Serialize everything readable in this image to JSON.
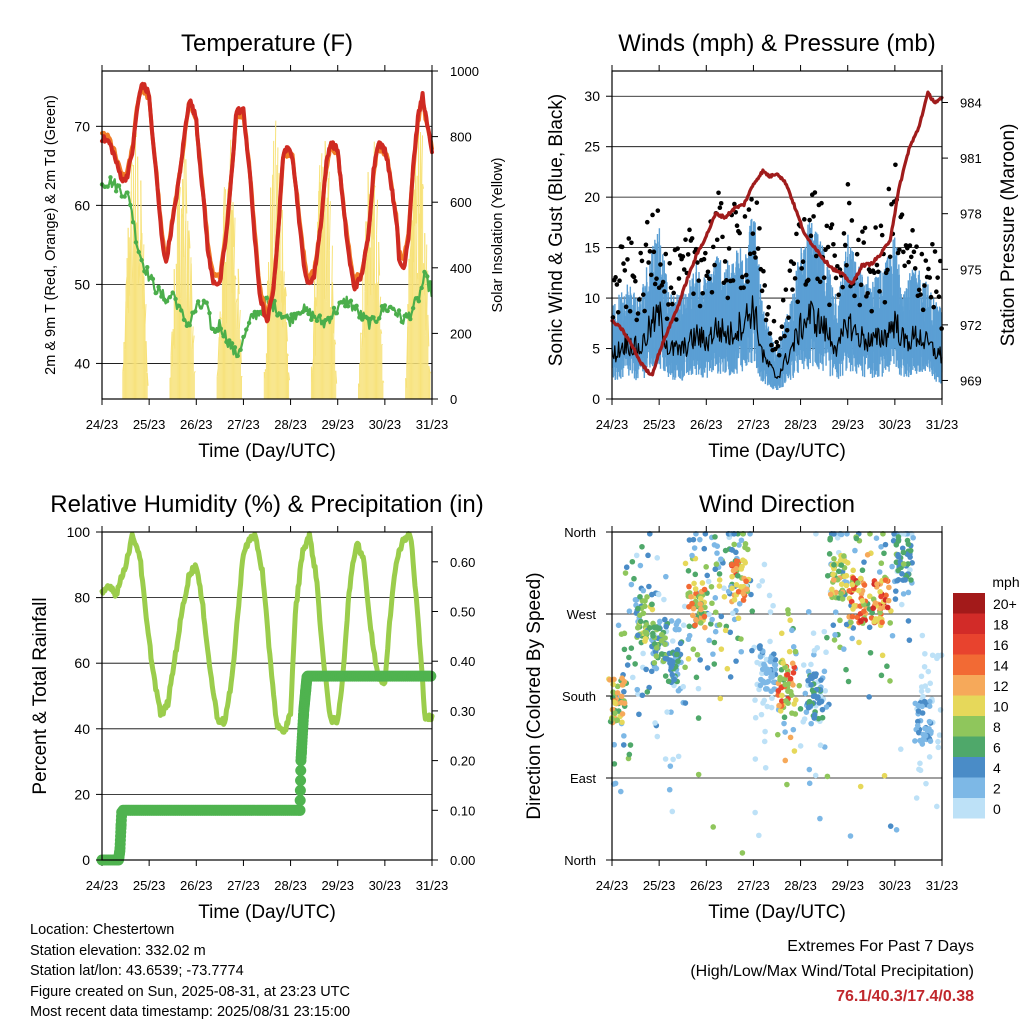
{
  "colors": {
    "temp2m": "#cf2a22",
    "temp9m": "#f07b26",
    "dewpoint": "#4bae4b",
    "solar": "#f7e27a",
    "gust": "#000000",
    "wind": "#5b9fd4",
    "pressure": "#a01c1c",
    "rh": "#9bcd4c",
    "precip": "#4fb34f",
    "extremes_text": "#c0282d"
  },
  "chart_data": [
    {
      "id": "temperature",
      "type": "line",
      "title": "Temperature (F)",
      "xlabel": "Time (Day/UTC)",
      "ylabel": "2m & 9m T (Red, Orange) & 2m Td (Green)",
      "y2label": "Solar Insolation (Yellow)",
      "x_ticks": [
        "24/23",
        "25/23",
        "26/23",
        "27/23",
        "28/23",
        "29/23",
        "30/23",
        "31/23"
      ],
      "y_ticks": [
        40,
        50,
        60,
        70
      ],
      "y2_ticks": [
        0,
        200,
        400,
        600,
        800,
        1000
      ],
      "ylim": [
        35.5,
        77
      ],
      "y2lim": [
        0,
        1000
      ],
      "grid": "horizontal",
      "series": [
        {
          "key": "temp2m",
          "axis": "left",
          "x": [
            0,
            0.15,
            0.25,
            0.35,
            0.45,
            0.55,
            0.65,
            0.75,
            0.85,
            1.0,
            1.05,
            1.15,
            1.25,
            1.35,
            1.5,
            1.65,
            1.75,
            1.85,
            2.0,
            2.05,
            2.15,
            2.25,
            2.35,
            2.5,
            2.65,
            2.75,
            2.85,
            3.0,
            3.05,
            3.15,
            3.25,
            3.35,
            3.5,
            3.65,
            3.75,
            3.85,
            4.0,
            4.05,
            4.15,
            4.25,
            4.35,
            4.5,
            4.65,
            4.75,
            4.85,
            5.0,
            5.05,
            5.15,
            5.25,
            5.35,
            5.5,
            5.65,
            5.75,
            5.85,
            6.0,
            6.05,
            6.15,
            6.25,
            6.3,
            6.4,
            6.5,
            6.6,
            6.7,
            6.8,
            6.9,
            7.0
          ],
          "y": [
            68.5,
            68,
            66.5,
            64.5,
            63,
            64,
            67,
            72.5,
            75.5,
            74,
            70,
            64,
            57,
            52.5,
            58,
            64,
            69,
            73.5,
            71,
            67,
            61,
            54,
            50.5,
            50,
            57,
            64,
            72,
            72,
            69,
            63,
            55,
            48.5,
            45,
            50,
            58,
            67,
            67,
            66,
            60,
            54,
            50,
            51,
            58,
            65,
            68,
            67,
            64,
            58,
            53,
            49.5,
            51,
            56,
            64,
            68,
            67,
            66,
            62,
            58,
            53,
            52,
            56,
            65,
            71,
            74,
            70,
            67
          ]
        },
        {
          "key": "temp9m",
          "axis": "left",
          "x": [
            0,
            0.15,
            0.25,
            0.35,
            0.45,
            0.55,
            0.65,
            0.75,
            0.85,
            1.0,
            1.05,
            1.15,
            1.25,
            1.35,
            1.5,
            1.65,
            1.75,
            1.85,
            2.0,
            2.05,
            2.15,
            2.25,
            2.35,
            2.5,
            2.65,
            2.75,
            2.85,
            3.0,
            3.05,
            3.15,
            3.25,
            3.35,
            3.5,
            3.65,
            3.75,
            3.85,
            4.0,
            4.05,
            4.15,
            4.25,
            4.35,
            4.5,
            4.65,
            4.75,
            4.85,
            5.0,
            5.05,
            5.15,
            5.25,
            5.35,
            5.5,
            5.65,
            5.75,
            5.85,
            6.0,
            6.05,
            6.15,
            6.25,
            6.3,
            6.4,
            6.5,
            6.6,
            6.7,
            6.8,
            6.9,
            7.0
          ],
          "y": [
            69,
            68.5,
            67,
            65,
            63.5,
            64.5,
            67.5,
            73,
            75,
            73.5,
            70,
            64.5,
            57.5,
            53,
            58.5,
            64,
            68.5,
            73,
            70.5,
            67.5,
            61.5,
            55,
            51.5,
            51,
            57.5,
            64,
            71.5,
            71.5,
            69,
            63.5,
            56,
            49.5,
            46,
            50.5,
            58,
            66.5,
            66.5,
            66,
            60.5,
            55,
            51,
            51.5,
            58,
            64.5,
            67.5,
            66.5,
            64,
            58.5,
            54,
            50.5,
            51.5,
            56,
            63.5,
            67.5,
            66.5,
            66,
            62,
            58.5,
            54,
            53,
            56.5,
            64.5,
            70.5,
            73,
            70,
            67.5
          ]
        },
        {
          "key": "dewpoint",
          "axis": "left",
          "x": [
            0,
            0.2,
            0.4,
            0.5,
            0.6,
            0.75,
            0.85,
            1.0,
            1.2,
            1.4,
            1.5,
            1.7,
            1.85,
            2.0,
            2.2,
            2.35,
            2.5,
            2.7,
            2.85,
            3.0,
            3.2,
            3.35,
            3.5,
            3.7,
            3.85,
            4.0,
            4.2,
            4.35,
            4.5,
            4.7,
            4.85,
            5.0,
            5.2,
            5.35,
            5.5,
            5.7,
            5.85,
            6.0,
            6.2,
            6.35,
            6.5,
            6.7,
            6.85,
            7.0
          ],
          "y": [
            63,
            63,
            62,
            61.5,
            60.5,
            55,
            53,
            51,
            49,
            48,
            49,
            46,
            45,
            47,
            47.5,
            44,
            45,
            42.5,
            41,
            43,
            46,
            46.5,
            48,
            47,
            46,
            45.5,
            47,
            46.5,
            46,
            45,
            46,
            47,
            48,
            47,
            46,
            45,
            46,
            47,
            47,
            45.5,
            46,
            48,
            51,
            49
          ]
        },
        {
          "key": "solar",
          "axis": "right",
          "note": "diurnal peaks",
          "peaks_day": [
            0.7,
            1.7,
            2.7,
            3.7,
            4.7,
            5.7,
            6.7
          ],
          "peak_value": [
            880,
            860,
            840,
            880,
            850,
            830,
            900
          ]
        }
      ]
    },
    {
      "id": "winds",
      "type": "scatter",
      "title": "Winds (mph) & Pressure (mb)",
      "xlabel": "Time (Day/UTC)",
      "ylabel": "Sonic Wind & Gust (Blue, Black)",
      "y2label": "Station Pressure (Maroon)",
      "x_ticks": [
        "24/23",
        "25/23",
        "26/23",
        "27/23",
        "28/23",
        "29/23",
        "30/23",
        "31/23"
      ],
      "y_ticks": [
        0,
        5,
        10,
        15,
        20,
        25,
        30
      ],
      "y2_ticks": [
        969,
        972,
        975,
        978,
        981,
        984
      ],
      "ylim": [
        0,
        32.5
      ],
      "y2lim": [
        968,
        985.7
      ],
      "grid": "horizontal",
      "series": [
        {
          "key": "pressure",
          "axis": "right",
          "x": [
            0,
            0.2,
            0.4,
            0.6,
            0.75,
            0.85,
            1.0,
            1.2,
            1.4,
            1.6,
            1.8,
            2.0,
            2.2,
            2.4,
            2.6,
            2.8,
            3.0,
            3.2,
            3.35,
            3.5,
            3.7,
            3.9,
            4.1,
            4.3,
            4.5,
            4.7,
            4.9,
            5.1,
            5.3,
            5.5,
            5.7,
            5.9,
            6.1,
            6.3,
            6.5,
            6.7,
            6.85,
            7.0
          ],
          "y": [
            972.2,
            971.8,
            971,
            970,
            969.5,
            969.3,
            970.5,
            971.8,
            973,
            974.5,
            975.8,
            976.8,
            978,
            977.8,
            978.3,
            978.5,
            979.6,
            980.3,
            980,
            980.2,
            979.6,
            978.2,
            976.8,
            976.2,
            975.5,
            975,
            974.7,
            974.2,
            975.2,
            975.3,
            975.8,
            976.6,
            979.5,
            981.5,
            982.6,
            984.5,
            984,
            984.2
          ]
        },
        {
          "key": "wind",
          "axis": "left",
          "note": "mean wind band",
          "x": [
            0,
            0.3,
            0.6,
            0.8,
            1.0,
            1.2,
            1.5,
            1.8,
            2.0,
            2.2,
            2.5,
            2.8,
            3.0,
            3.2,
            3.5,
            3.8,
            4.0,
            4.2,
            4.5,
            4.8,
            5.0,
            5.2,
            5.5,
            5.8,
            6.0,
            6.2,
            6.5,
            6.8,
            7.0
          ],
          "y": [
            6,
            8,
            7,
            10,
            12,
            7,
            7,
            9,
            8,
            10,
            9,
            11,
            13,
            6,
            3,
            7,
            10,
            12,
            10,
            7,
            11,
            9,
            8,
            9,
            11,
            8,
            9,
            7,
            6
          ]
        },
        {
          "key": "gust",
          "axis": "left",
          "note": "gust envelope",
          "x": [
            0,
            0.3,
            0.6,
            0.8,
            1.0,
            1.2,
            1.5,
            1.8,
            2.0,
            2.2,
            2.5,
            2.8,
            3.0,
            3.2,
            3.5,
            3.8,
            4.0,
            4.2,
            4.5,
            4.8,
            5.0,
            5.2,
            5.5,
            5.8,
            6.0,
            6.2,
            6.5,
            6.8,
            7.0
          ],
          "y": [
            12,
            15,
            13,
            17,
            20,
            13,
            14,
            17,
            16,
            19,
            17,
            19,
            22,
            12,
            6,
            13,
            18,
            21,
            18,
            14,
            20,
            16,
            15,
            17,
            23,
            16,
            16,
            15,
            12
          ]
        }
      ]
    },
    {
      "id": "humidity",
      "type": "line",
      "title": "Relative Humidity (%) & Precipitation (in)",
      "xlabel": "Time (Day/UTC)",
      "ylabel": "Percent & Total Rainfall",
      "x_ticks": [
        "24/23",
        "25/23",
        "26/23",
        "27/23",
        "28/23",
        "29/23",
        "30/23",
        "31/23"
      ],
      "y_ticks": [
        0,
        20,
        40,
        60,
        80,
        100
      ],
      "y2_ticks": [
        "0.00",
        "0.10",
        "0.20",
        "0.30",
        "0.40",
        "0.50",
        "0.60"
      ],
      "ylim": [
        0,
        100
      ],
      "y2lim": [
        0,
        0.66
      ],
      "grid": "horizontal",
      "series": [
        {
          "key": "rh",
          "axis": "left",
          "x": [
            0,
            0.15,
            0.3,
            0.5,
            0.65,
            0.8,
            0.95,
            1.1,
            1.25,
            1.4,
            1.55,
            1.7,
            1.85,
            2.0,
            2.15,
            2.3,
            2.45,
            2.6,
            2.75,
            2.9,
            3.0,
            3.1,
            3.25,
            3.4,
            3.55,
            3.7,
            3.85,
            4.0,
            4.1,
            4.25,
            4.4,
            4.55,
            4.7,
            4.85,
            5.0,
            5.1,
            5.25,
            5.4,
            5.55,
            5.7,
            5.85,
            6.0,
            6.1,
            6.25,
            6.4,
            6.55,
            6.7,
            6.85,
            7.0
          ],
          "y": [
            81,
            84,
            81,
            90,
            99,
            93,
            72,
            56,
            44,
            48,
            62,
            76,
            87,
            90,
            76,
            57,
            43,
            42,
            54,
            78,
            94,
            97,
            99,
            88,
            64,
            42,
            38,
            45,
            75,
            94,
            99,
            86,
            60,
            43,
            42,
            55,
            83,
            97,
            92,
            70,
            56,
            54,
            73,
            92,
            98,
            99,
            74,
            44,
            43
          ]
        },
        {
          "key": "precip",
          "axis": "right",
          "x": [
            0,
            0.35,
            0.38,
            0.42,
            0.55,
            4.2,
            4.22,
            4.28,
            4.35,
            7.0
          ],
          "y": [
            0,
            0,
            0.02,
            0.1,
            0.1,
            0.1,
            0.2,
            0.3,
            0.37,
            0.37
          ]
        }
      ]
    },
    {
      "id": "direction",
      "type": "scatter",
      "title": "Wind Direction",
      "xlabel": "Time (Day/UTC)",
      "ylabel": "Direction (Colored By Speed)",
      "x_ticks": [
        "24/23",
        "25/23",
        "26/23",
        "27/23",
        "28/23",
        "29/23",
        "30/23",
        "31/23"
      ],
      "y_ticks": [
        "North",
        "East",
        "South",
        "West",
        "North"
      ],
      "ylim": [
        0,
        360
      ],
      "grid": "horizontal",
      "legend": {
        "title": "mph",
        "labels": [
          "20+",
          "18",
          "16",
          "14",
          "12",
          "10",
          "8",
          "6",
          "4",
          "2",
          "0"
        ],
        "colors": [
          "#a31a1a",
          "#d22b28",
          "#e8432e",
          "#f26a34",
          "#f6a95a",
          "#e6d85a",
          "#8fc65c",
          "#4fa86a",
          "#4a8cc7",
          "#7db8e6",
          "#bde1f7"
        ]
      },
      "clusters": [
        {
          "day": 0.1,
          "dir": 175,
          "speed": 11
        },
        {
          "day": 0.7,
          "dir": 265,
          "speed": 9
        },
        {
          "day": 1.0,
          "dir": 240,
          "speed": 7
        },
        {
          "day": 1.3,
          "dir": 215,
          "speed": 5
        },
        {
          "day": 1.8,
          "dir": 280,
          "speed": 12
        },
        {
          "day": 2.7,
          "dir": 305,
          "speed": 13
        },
        {
          "day": 3.3,
          "dir": 210,
          "speed": 3
        },
        {
          "day": 3.7,
          "dir": 192,
          "speed": 14
        },
        {
          "day": 4.3,
          "dir": 180,
          "speed": 5
        },
        {
          "day": 4.8,
          "dir": 310,
          "speed": 10
        },
        {
          "day": 5.2,
          "dir": 285,
          "speed": 15
        },
        {
          "day": 5.7,
          "dir": 285,
          "speed": 16
        },
        {
          "day": 6.2,
          "dir": 330,
          "speed": 6
        },
        {
          "day": 6.6,
          "dir": 150,
          "speed": 3
        }
      ]
    }
  ],
  "info": {
    "location": "Location: Chestertown",
    "elevation": "Station elevation: 332.02 m",
    "latlon": "Station lat/lon: 43.6539; -73.7774",
    "created": "Figure created on Sun, 2025-08-31, at 23:23 UTC",
    "recent": "Most recent data timestamp: 2025/08/31 23:15:00"
  },
  "extremes": {
    "heading": "Extremes For Past 7 Days",
    "subheading": "(High/Low/Max Wind/Total Precipitation)",
    "values": "76.1/40.3/17.4/0.38"
  }
}
